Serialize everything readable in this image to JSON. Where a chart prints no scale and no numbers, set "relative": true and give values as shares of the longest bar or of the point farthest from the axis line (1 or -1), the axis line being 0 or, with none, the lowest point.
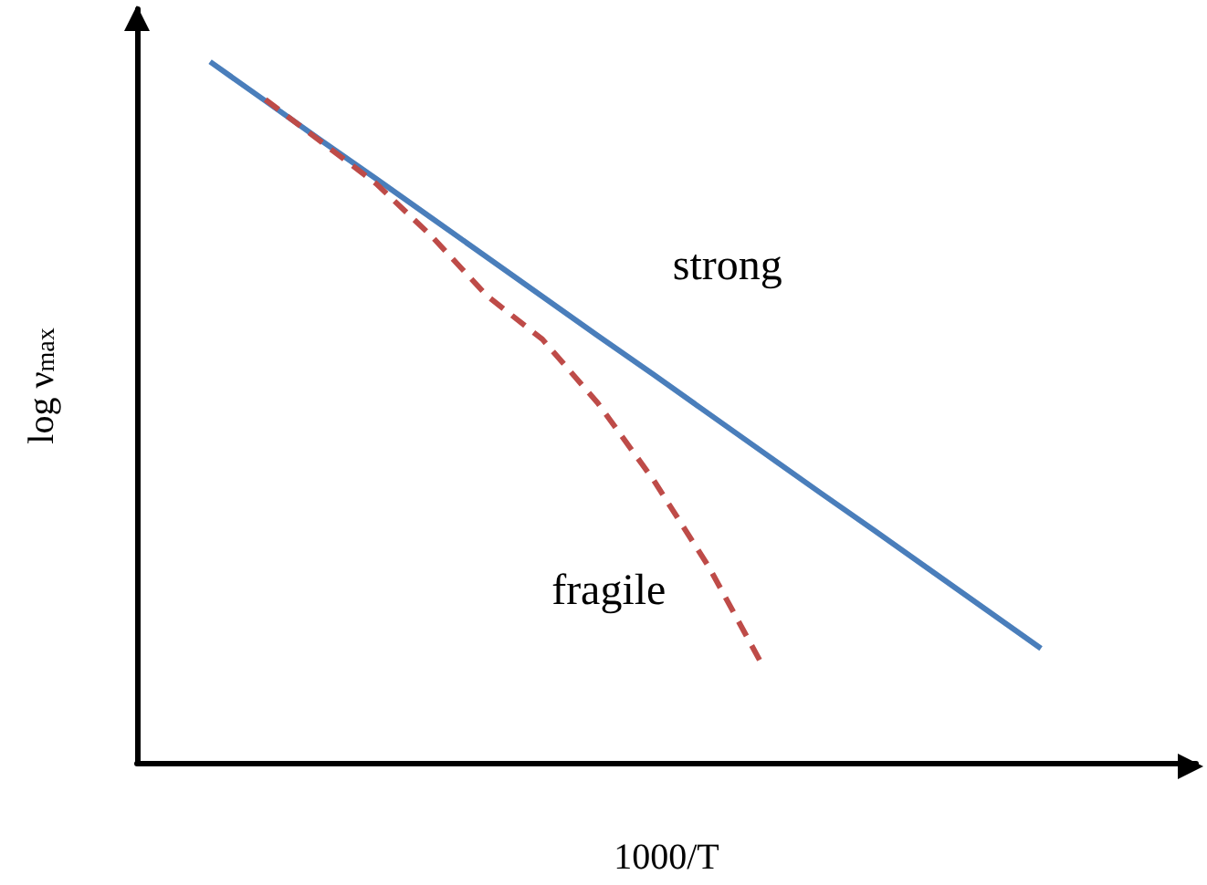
{
  "chart_data": {
    "type": "line",
    "relative": true,
    "xlabel": "1000/T",
    "ylabel": "log ν$_{max}$",
    "categories": [
      null,
      null,
      null,
      null,
      null,
      null,
      null,
      null,
      null,
      null,
      null,
      null,
      null,
      null,
      null,
      null
    ],
    "series": [
      {
        "name": "strong",
        "color": "#4a7ebb",
        "line_style": "solid",
        "values": [
          1,
          0.944,
          0.888,
          0.833,
          0.777,
          0.721,
          0.665,
          0.609,
          0.554,
          0.498,
          0.442,
          0.386,
          0.331,
          0.275,
          0.219,
          0.163
        ]
      },
      {
        "name": "fragile",
        "color": "#be4b48",
        "line_style": "dashed",
        "values": [
          null,
          0.946,
          0.886,
          0.826,
          0.751,
          0.666,
          0.604,
          0.513,
          0.404,
          0.28,
          0.135,
          null,
          null,
          null,
          null,
          null
        ]
      }
    ],
    "tick_labels": false,
    "grid": false,
    "legend": false,
    "marker": "none"
  }
}
